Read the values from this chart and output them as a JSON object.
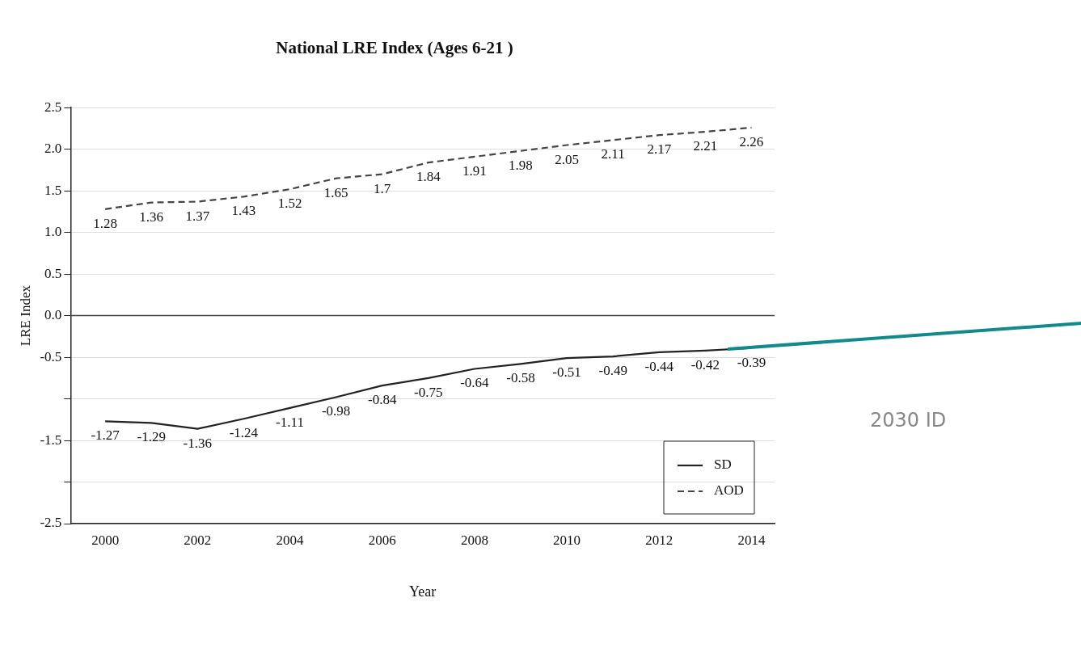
{
  "chart_data": {
    "type": "line",
    "title": "National LRE Index (Ages 6-21 )",
    "xlabel": "Year",
    "ylabel": "LRE Index",
    "x": [
      2000,
      2001,
      2002,
      2003,
      2004,
      2005,
      2006,
      2007,
      2008,
      2009,
      2010,
      2011,
      2012,
      2013,
      2014
    ],
    "series": [
      {
        "name": "SD",
        "color": "#222222",
        "line_style": "solid",
        "values": [
          -1.27,
          -1.29,
          -1.36,
          -1.24,
          -1.11,
          -0.98,
          -0.84,
          -0.75,
          -0.64,
          -0.58,
          -0.51,
          -0.49,
          -0.44,
          -0.42,
          -0.39
        ]
      },
      {
        "name": "AOD",
        "color": "#444444",
        "line_style": "dashed",
        "values": [
          1.28,
          1.36,
          1.37,
          1.43,
          1.52,
          1.65,
          1.7,
          1.84,
          1.91,
          1.98,
          2.05,
          2.11,
          2.17,
          2.21,
          2.26
        ]
      }
    ],
    "xlim": [
      1999.25,
      2014.5
    ],
    "xticks": [
      2000,
      2002,
      2004,
      2006,
      2008,
      2010,
      2012,
      2014
    ],
    "ylim": [
      -2.5,
      2.5
    ],
    "yticks": [
      -2.5,
      {
        "value": -2,
        "label": null
      },
      -1.5,
      {
        "value": -1,
        "label": null
      },
      -0.5,
      {
        "value": 0,
        "label": "0.0"
      },
      0.5,
      {
        "value": 1,
        "label": "1.0"
      },
      1.5,
      {
        "value": 2,
        "label": "2.0"
      },
      2.5
    ],
    "ref_lines": [
      {
        "axis": "y",
        "value": 0,
        "label": null,
        "color": "#444444"
      }
    ],
    "grid": "y",
    "legend": "bottom right",
    "data_labels": true,
    "marker": "none",
    "annotations": [
      "2030 ID"
    ]
  }
}
